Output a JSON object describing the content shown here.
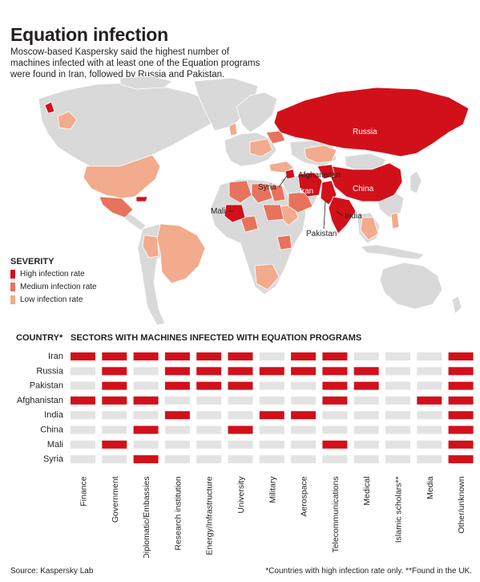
{
  "title": "Equation infection",
  "subtitle_lines": [
    "Moscow-based Kaspersky said the highest number of",
    "machines infected with at least one of the Equation programs",
    "were found in Iran, followed by Russia and Pakistan."
  ],
  "colors": {
    "high": "#d2101a",
    "medium": "#e8735c",
    "low": "#f2ab8c",
    "land": "#d9d9da",
    "empty_cell": "#e3e3e3",
    "text": "#231f20"
  },
  "map": {
    "labels": [
      "Russia",
      "Afghanistan",
      "Syria",
      "Iran",
      "China",
      "Mali",
      "India",
      "Pakistan"
    ]
  },
  "legend": {
    "heading": "SEVERITY",
    "items": [
      {
        "label": "High infection rate",
        "color": "#d2101a"
      },
      {
        "label": "Medium infection rate",
        "color": "#e8735c"
      },
      {
        "label": "Low infection rate",
        "color": "#f2ab8c"
      }
    ]
  },
  "chart_data": {
    "type": "table",
    "row_header": "COUNTRY*",
    "column_header": "SECTORS WITH MACHINES INFECTED WITH EQUATION PROGRAMS",
    "countries": [
      "Iran",
      "Russia",
      "Pakistan",
      "Afghanistan",
      "India",
      "China",
      "Mali",
      "Syria"
    ],
    "sectors": [
      "Finance",
      "Government",
      "Diplomatic/Embassies",
      "Research institution",
      "Energy/Infrastructure",
      "University",
      "Military",
      "Aerospace",
      "Telecommunications",
      "Medical",
      "Islamic scholars**",
      "Media",
      "Other/unknown"
    ],
    "infected": [
      [
        1,
        1,
        1,
        1,
        1,
        1,
        0,
        1,
        1,
        0,
        0,
        0,
        1
      ],
      [
        0,
        1,
        0,
        1,
        1,
        1,
        1,
        1,
        1,
        1,
        0,
        0,
        1
      ],
      [
        0,
        1,
        0,
        1,
        1,
        1,
        0,
        0,
        1,
        1,
        0,
        0,
        1
      ],
      [
        1,
        1,
        1,
        0,
        0,
        0,
        0,
        0,
        1,
        0,
        0,
        1,
        1
      ],
      [
        0,
        0,
        0,
        1,
        0,
        0,
        1,
        1,
        0,
        0,
        0,
        0,
        1
      ],
      [
        0,
        0,
        1,
        0,
        0,
        1,
        0,
        0,
        0,
        0,
        0,
        0,
        1
      ],
      [
        0,
        1,
        0,
        0,
        0,
        0,
        0,
        0,
        1,
        0,
        0,
        0,
        1
      ],
      [
        0,
        0,
        1,
        0,
        0,
        0,
        0,
        0,
        0,
        0,
        0,
        0,
        1
      ]
    ]
  },
  "footer": {
    "source": "Source: Kaspersky Lab",
    "note": "*Countries with high infection rate only. **Found in the UK."
  }
}
